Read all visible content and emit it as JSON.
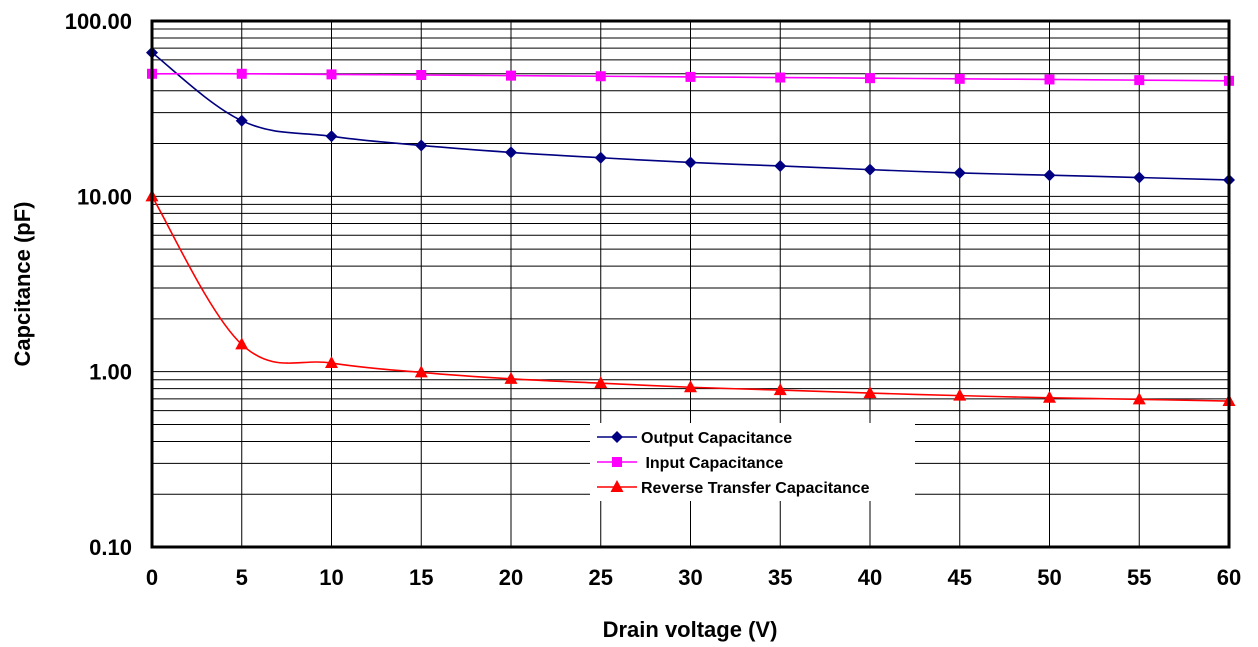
{
  "chart_data": {
    "type": "line",
    "title": "",
    "xlabel": "Drain voltage (V)",
    "ylabel": "Capcitance (pF)",
    "xlim": [
      0,
      60
    ],
    "ylim": [
      0.1,
      100
    ],
    "yscale": "log",
    "grid": true,
    "legend_position": "lower-center",
    "x_tick_labels": [
      "0",
      "5",
      "10",
      "15",
      "20",
      "25",
      "30",
      "35",
      "40",
      "45",
      "50",
      "55",
      "60"
    ],
    "y_tick_labels": [
      "0.10",
      "1.00",
      "10.00",
      "100.00"
    ],
    "x": [
      0,
      5,
      10,
      15,
      20,
      25,
      30,
      35,
      40,
      45,
      50,
      55,
      60
    ],
    "series": [
      {
        "name": "Output Capacitance",
        "color": "#000080",
        "marker": "diamond",
        "values": [
          66.0,
          27.0,
          22.0,
          19.5,
          17.8,
          16.6,
          15.6,
          14.9,
          14.2,
          13.6,
          13.2,
          12.8,
          12.4
        ]
      },
      {
        "name": " Input Capacitance",
        "color": "#FF00FF",
        "marker": "square",
        "values": [
          50.0,
          50.0,
          49.6,
          49.2,
          48.8,
          48.4,
          48.0,
          47.6,
          47.2,
          46.8,
          46.4,
          46.0,
          45.6
        ]
      },
      {
        "name": "Reverse Transfer Capacitance",
        "color": "#FF0000",
        "marker": "triangle",
        "values": [
          10.0,
          1.43,
          1.12,
          0.99,
          0.91,
          0.86,
          0.815,
          0.785,
          0.755,
          0.73,
          0.71,
          0.695,
          0.68
        ]
      }
    ]
  }
}
